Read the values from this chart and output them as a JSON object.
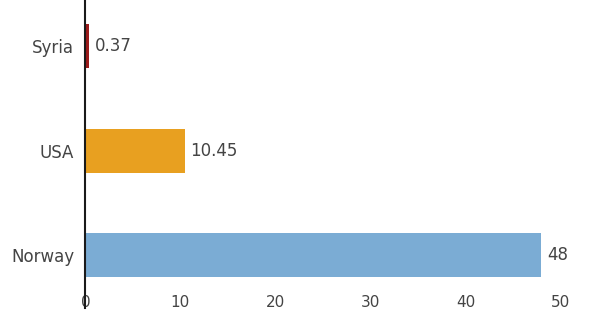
{
  "categories": [
    "Norway",
    "USA",
    "Syria"
  ],
  "values": [
    48,
    10.45,
    0.37
  ],
  "bar_colors": [
    "#7bacd4",
    "#e8a020",
    "#9b1b1b"
  ],
  "value_labels": [
    "48",
    "10.45",
    "0.37"
  ],
  "xlim": [
    0,
    53
  ],
  "xticks": [
    0,
    10,
    20,
    30,
    40,
    50
  ],
  "bar_height": 0.42,
  "background_color": "#ffffff",
  "label_fontsize": 12,
  "tick_fontsize": 11,
  "text_color": "#444444"
}
